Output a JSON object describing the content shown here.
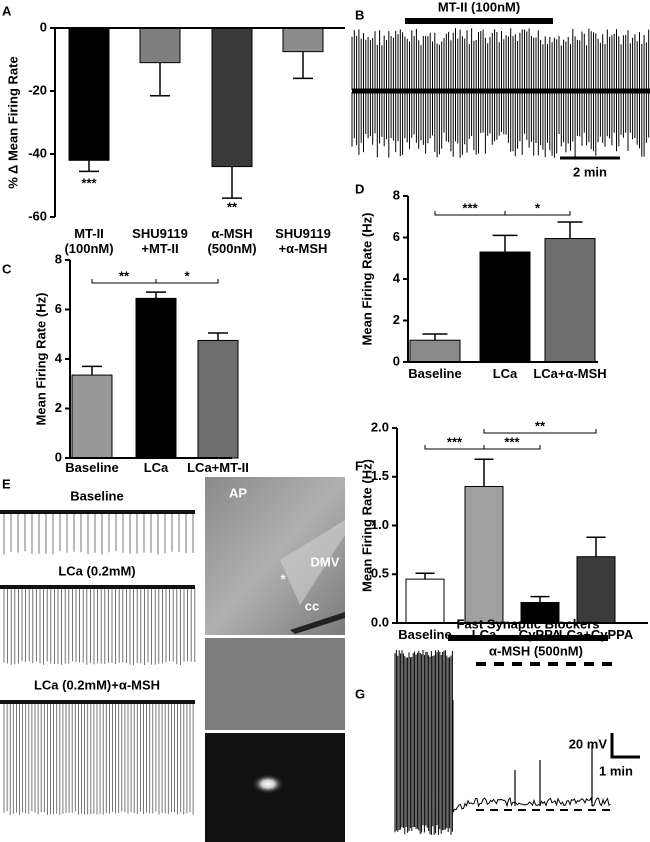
{
  "panel_labels": [
    "A",
    "B",
    "C",
    "D",
    "E",
    "F",
    "G"
  ],
  "chart_data": [
    {
      "type": "bar",
      "ylabel": "% Δ Mean Firing Rate",
      "categories": [
        "MT-II (100nM)",
        "SHU9119 +MT-II",
        "α-MSH (500nM)",
        "SHU9119 +α-MSH"
      ],
      "values": [
        -42,
        -11,
        -44,
        -7.5
      ],
      "errors": [
        3.5,
        10.5,
        10,
        8.5
      ],
      "colors": [
        "#000000",
        "#7f7f7f",
        "#3a3a3a",
        "#8c8c8c"
      ],
      "ylim": [
        -60,
        0
      ],
      "yticks": [
        -60,
        -40,
        -20,
        0
      ],
      "annotations": [
        "***",
        "**"
      ]
    },
    {
      "type": "bar",
      "ylabel": "Mean  Firing Rate (Hz)",
      "categories": [
        "Baseline",
        "LCa",
        "LCa+MT-II"
      ],
      "values": [
        3.35,
        6.45,
        4.75
      ],
      "errors": [
        0.35,
        0.25,
        0.3
      ],
      "colors": [
        "#999999",
        "#000000",
        "#6e6e6e"
      ],
      "ylim": [
        0,
        8
      ],
      "yticks": [
        0,
        2,
        4,
        6,
        8
      ],
      "annotations": [
        "**",
        "*"
      ]
    },
    {
      "type": "bar",
      "ylabel": "Mean  Firing Rate (Hz)",
      "categories": [
        "Baseline",
        "LCa",
        "LCa+α-MSH"
      ],
      "values": [
        1.05,
        5.3,
        5.95
      ],
      "errors": [
        0.3,
        0.8,
        0.8
      ],
      "colors": [
        "#8a8a8a",
        "#000000",
        "#6e6e6e"
      ],
      "ylim": [
        0,
        8
      ],
      "yticks": [
        0,
        2,
        4,
        6,
        8
      ],
      "annotations": [
        "***",
        "*"
      ]
    },
    {
      "type": "bar",
      "ylabel": "Mean  Firing Rate (Hz)",
      "categories": [
        "Baseline",
        "LCa",
        "CyPPA",
        "LCa+CyPPA"
      ],
      "values": [
        0.45,
        1.4,
        0.21,
        0.68
      ],
      "errors": [
        0.06,
        0.28,
        0.06,
        0.2
      ],
      "colors": [
        "#ffffff",
        "#a0a0a0",
        "#000000",
        "#3c3c3c"
      ],
      "ylim": [
        0,
        2
      ],
      "yticks": [
        {
          "value": 0,
          "label": "0.0"
        },
        {
          "value": 0.5,
          "label": "0.5"
        },
        {
          "value": 1,
          "label": "1.0"
        },
        {
          "value": 1.5,
          "label": "1.5"
        },
        {
          "value": 2,
          "label": "2.0"
        }
      ],
      "annotations": [
        "***",
        "***",
        "**"
      ]
    }
  ],
  "trace_b": {
    "drug": "MT-II (100nM)",
    "scale": "2 min"
  },
  "trace_e": {
    "labels": [
      "Baseline",
      "LCa (0.2mM)",
      "LCa (0.2mM)+α-MSH"
    ],
    "image_labels": [
      "AP",
      "DMV",
      "*",
      "cc"
    ]
  },
  "trace_g": {
    "blockers": "Fast Synaptic Blockers",
    "drug": "α-MSH (500nM)",
    "scale_v": "20 mV",
    "scale_t": "1 min"
  }
}
